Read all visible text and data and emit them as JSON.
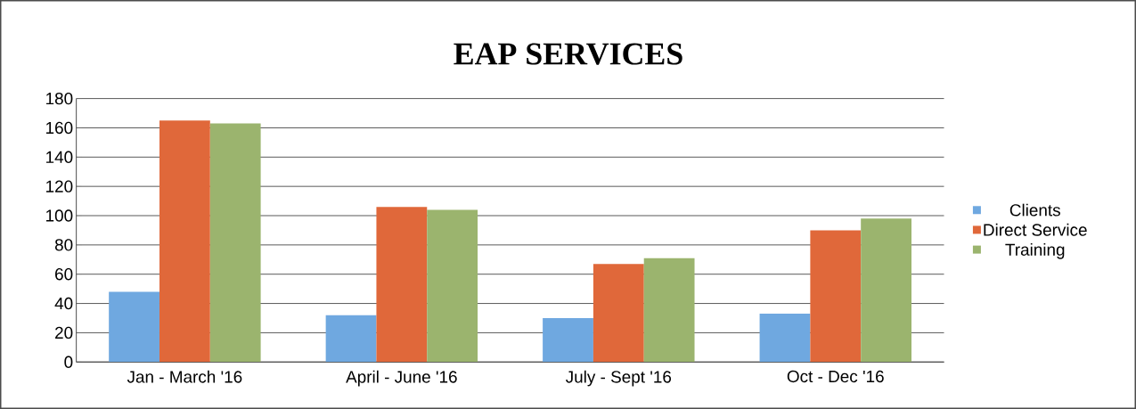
{
  "chart_data": {
    "type": "bar",
    "title": "EAP SERVICES",
    "categories": [
      "Jan - March '16",
      "April - June '16",
      "July - Sept '16",
      "Oct - Dec '16"
    ],
    "series": [
      {
        "name": "Clients",
        "color": "#6fa8e0",
        "values": [
          48,
          32,
          30,
          33
        ]
      },
      {
        "name": "Direct Service",
        "color": "#e0683a",
        "values": [
          165,
          106,
          67,
          90
        ]
      },
      {
        "name": "Training",
        "color": "#9bb46e",
        "values": [
          163,
          104,
          71,
          98
        ]
      }
    ],
    "ylim": [
      0,
      180
    ],
    "yticks": [
      0,
      20,
      40,
      60,
      80,
      100,
      120,
      140,
      160,
      180
    ],
    "grid": "y",
    "legend": "right"
  }
}
